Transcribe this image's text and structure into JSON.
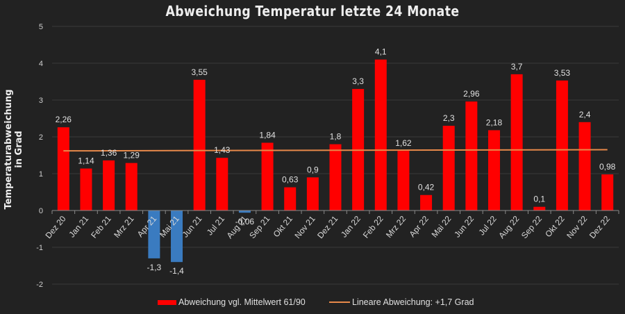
{
  "chart_data": {
    "type": "bar",
    "title": "Abweichung Temperatur letzte 24 Monate",
    "xlabel": "",
    "ylabel": "Temperaturabweichung in Grad",
    "ylim": [
      -2,
      5
    ],
    "yticks": [
      -2,
      -1,
      0,
      1,
      2,
      3,
      4,
      5
    ],
    "grid": true,
    "legend_position": "bottom",
    "categories": [
      "Dez 20",
      "Jan 21",
      "Feb 21",
      "Mrz 21",
      "Apr 21",
      "Mai 21",
      "Jun 21",
      "Jul 21",
      "Aug 21",
      "Sep 21",
      "Okt 21",
      "Nov 21",
      "Dez 21",
      "Jan 22",
      "Feb 22",
      "Mrz 22",
      "Apr 22",
      "Mai 22",
      "Jun 22",
      "Jul 22",
      "Aug 22",
      "Sep 22",
      "Okt 22",
      "Nov 22",
      "Dez 22"
    ],
    "series": [
      {
        "name": "Abweichung vgl. Mittelwert 61/90",
        "type": "bar",
        "values": [
          2.26,
          1.14,
          1.36,
          1.29,
          -1.3,
          -1.4,
          3.55,
          1.43,
          -0.06,
          1.84,
          0.63,
          0.9,
          1.8,
          3.3,
          4.1,
          1.62,
          0.42,
          2.3,
          2.96,
          2.18,
          3.7,
          0.1,
          3.53,
          2.4,
          0.98
        ],
        "data_labels": [
          "2,26",
          "1,14",
          "1,36",
          "1,29",
          "-1,3",
          "-1,4",
          "3,55",
          "1,43",
          "-0,06",
          "1,84",
          "0,63",
          "0,9",
          "1,8",
          "3,3",
          "4,1",
          "1,62",
          "0,42",
          "2,3",
          "2,96",
          "2,18",
          "3,7",
          "0,1",
          "3,53",
          "2,4",
          "0,98"
        ],
        "positive_color": "#ff0000",
        "negative_color": "#3a7bc0"
      },
      {
        "name": "Lineare Abweichung: +1,7 Grad",
        "type": "line",
        "trend_start": 1.62,
        "trend_end": 1.65,
        "color": "#e8894a"
      }
    ]
  },
  "legend": {
    "bar_label": "Abweichung vgl. Mittelwert 61/90",
    "line_label": "Lineare Abweichung: +1,7 Grad"
  }
}
